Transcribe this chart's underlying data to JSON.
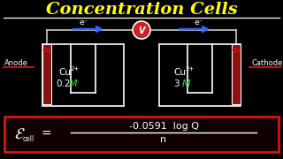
{
  "title": "Concentration Cells",
  "title_color": "#FFFF00",
  "bg_color": "#000000",
  "anode_label": "Anode",
  "cathode_label": "Cathode",
  "cu_label": "Cu",
  "left_conc": "0.2",
  "right_conc": "3",
  "voltmeter": "V",
  "electron_label": "e⁻",
  "formula_num": "-0.0591  log Q",
  "formula_den": "n",
  "white": "#ffffff",
  "red": "#dd1111",
  "green": "#33dd33",
  "blue": "#3366ff",
  "yellow": "#FFFF00",
  "darkred_fill": "#220000",
  "formula_bg": "#110000",
  "wire_color": "#cccccc",
  "voltmeter_circle": "#cc2222",
  "elec_fill": "#8B1010"
}
